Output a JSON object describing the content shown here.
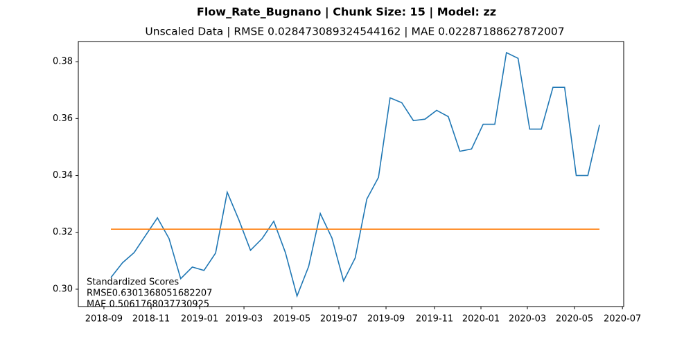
{
  "chart_data": {
    "type": "line",
    "title": "Flow_Rate_Bugnano | Chunk Size: 15 | Model: zz",
    "subtitle": "Unscaled Data | RMSE 0.028473089324544162 | MAE 0.02287188627872007",
    "annotations": [
      "Standardized Scores",
      "RMSE0.6301368051682207",
      "MAE 0.5061768037730925"
    ],
    "categories": [
      null,
      null,
      null,
      null,
      null,
      null,
      null,
      null,
      null,
      null,
      null,
      null,
      null,
      null,
      null,
      null,
      null,
      null,
      null,
      null,
      null,
      null,
      null,
      null,
      null,
      null,
      null,
      null,
      null,
      null,
      null,
      null,
      null,
      null,
      null,
      null,
      null,
      null,
      null,
      null,
      null,
      null,
      null
    ],
    "series": [
      {
        "color": "#1f77b4",
        "values": [
          0.3041,
          0.3093,
          0.3129,
          0.319,
          0.3251,
          0.3178,
          0.3037,
          0.3078,
          0.3066,
          0.3127,
          0.3341,
          0.3244,
          0.3137,
          0.3178,
          0.3239,
          0.3129,
          0.2976,
          0.308,
          0.3266,
          0.318,
          0.3029,
          0.311,
          0.3317,
          0.3393,
          0.3673,
          0.3656,
          0.3593,
          0.3598,
          0.3629,
          0.3607,
          0.3485,
          0.3493,
          0.358,
          0.358,
          0.3832,
          0.3812,
          0.3563,
          0.3563,
          0.371,
          0.371,
          0.34,
          0.34,
          0.3578
        ]
      },
      {
        "color": "#ff7f0e",
        "values": [
          0.3211,
          0.3211,
          0.3211,
          0.3211,
          0.3211,
          0.3211,
          0.3211,
          0.3211,
          0.3211,
          0.3211,
          0.3211,
          0.3211,
          0.3211,
          0.3211,
          0.3211,
          0.3211,
          0.3211,
          0.3211,
          0.3211,
          0.3211,
          0.3211,
          0.3211,
          0.3211,
          0.3211,
          0.3211,
          0.3211,
          0.3211,
          0.3211,
          0.3211,
          0.3211,
          0.3211,
          0.3211,
          0.3211,
          0.3211,
          0.3211,
          0.3211,
          0.3211,
          0.3211,
          0.3211,
          0.3211,
          0.3211,
          0.3211,
          0.3211
        ]
      }
    ],
    "xlim": [
      -2.8,
      44.08
    ],
    "xticks": [
      {
        "value": -0.6,
        "label": "2018-09"
      },
      {
        "value": 3.46,
        "label": "2018-11"
      },
      {
        "value": 7.63,
        "label": "2019-01"
      },
      {
        "value": 11.44,
        "label": "2019-03"
      },
      {
        "value": 15.55,
        "label": "2019-05"
      },
      {
        "value": 19.6,
        "label": "2019-07"
      },
      {
        "value": 23.65,
        "label": "2019-09"
      },
      {
        "value": 27.82,
        "label": "2019-11"
      },
      {
        "value": 31.81,
        "label": "2020-01"
      },
      {
        "value": 35.8,
        "label": "2020-03"
      },
      {
        "value": 39.85,
        "label": "2020-05"
      },
      {
        "value": 43.97,
        "label": "2020-07"
      }
    ],
    "ylim": [
      0.2939,
      0.3871
    ],
    "yticks": [
      {
        "value": 0.3,
        "label": "0.30"
      },
      0.32,
      0.34,
      0.36,
      0.38
    ],
    "grid": false
  }
}
